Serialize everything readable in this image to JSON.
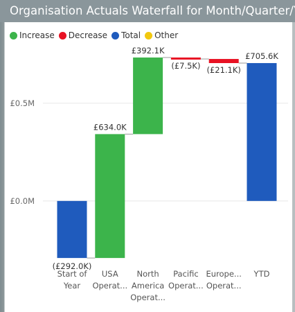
{
  "chart_data": {
    "type": "waterfall",
    "title": "Organisation Actuals Waterfall for Month/Quarter/Year",
    "legend": [
      {
        "name": "Increase",
        "color": "#3cb44b"
      },
      {
        "name": "Decrease",
        "color": "#e81123"
      },
      {
        "name": "Total",
        "color": "#1f5bbd"
      },
      {
        "name": "Other",
        "color": "#f2c80f"
      }
    ],
    "legend_position": "top-left",
    "categories": [
      [
        "Start of",
        "Year"
      ],
      [
        "USA",
        "Operat..."
      ],
      [
        "North",
        "America",
        "Operat..."
      ],
      [
        "Pacific",
        "Operat..."
      ],
      [
        "Europe...",
        "Operat..."
      ],
      [
        "YTD"
      ]
    ],
    "bars": [
      {
        "kind": "Total",
        "value": -292.0,
        "label": "(£292.0K)"
      },
      {
        "kind": "Increase",
        "value": 634.0,
        "label": "£634.0K"
      },
      {
        "kind": "Increase",
        "value": 392.1,
        "label": "£392.1K"
      },
      {
        "kind": "Decrease",
        "value": -7.5,
        "label": "(£7.5K)"
      },
      {
        "kind": "Decrease",
        "value": -21.1,
        "label": "(£21.1K)"
      },
      {
        "kind": "Total",
        "value": 705.6,
        "label": "£705.6K"
      }
    ],
    "y_unit": "K",
    "yticks": [
      {
        "value": 0,
        "label": "£0.0M"
      },
      {
        "value": 500,
        "label": "£0.5M"
      }
    ],
    "ylim": [
      -320,
      780
    ],
    "grid": true
  }
}
